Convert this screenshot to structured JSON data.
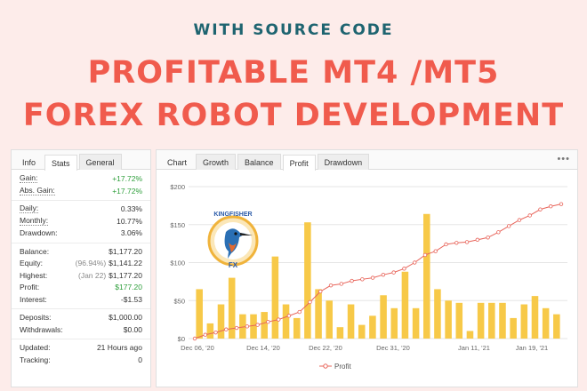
{
  "header": {
    "subtitle": "WITH SOURCE CODE",
    "line1": "PROFITABLE MT4 /MT5",
    "line2": "FOREX ROBOT DEVELOPMENT"
  },
  "stats_panel": {
    "tabs": [
      "Info",
      "Stats",
      "General"
    ],
    "rows": {
      "gain": {
        "label": "Gain:",
        "value": "+17.72%"
      },
      "abs_gain": {
        "label": "Abs. Gain:",
        "value": "+17.72%"
      },
      "daily": {
        "label": "Daily:",
        "value": "0.33%"
      },
      "monthly": {
        "label": "Monthly:",
        "value": "10.77%"
      },
      "drawdown": {
        "label": "Drawdown:",
        "value": "3.06%"
      },
      "balance": {
        "label": "Balance:",
        "value": "$1,177.20"
      },
      "equity": {
        "label": "Equity:",
        "pre": "(96.94%)",
        "value": "$1,141.22"
      },
      "highest": {
        "label": "Highest:",
        "pre": "(Jan 22)",
        "value": "$1,177.20"
      },
      "profit": {
        "label": "Profit:",
        "value": "$177.20"
      },
      "interest": {
        "label": "Interest:",
        "value": "-$1.53"
      },
      "deposits": {
        "label": "Deposits:",
        "value": "$1,000.00"
      },
      "withdrawals": {
        "label": "Withdrawals:",
        "value": "$0.00"
      },
      "updated": {
        "label": "Updated:",
        "value": "21 Hours ago"
      },
      "tracking": {
        "label": "Tracking:",
        "value": "0"
      }
    }
  },
  "chart_panel": {
    "tabs": [
      "Chart",
      "Growth",
      "Balance",
      "Profit",
      "Drawdown"
    ],
    "active_tab": "Profit",
    "menu_label": "•••"
  },
  "logo": {
    "text_top": "KINGFISHER",
    "text_bottom": "FX"
  },
  "colors": {
    "bar": "#f7c948",
    "line": "#e8645a",
    "accent_red": "#f05b4d",
    "teal": "#1e6470"
  },
  "chart_data": {
    "type": "bar",
    "title": "",
    "y_ticks": [
      "$0",
      "$50",
      "$100",
      "$150",
      "$200"
    ],
    "ylim": [
      0,
      200
    ],
    "x_ticks": [
      "Dec 06, '20",
      "Dec 14, '20",
      "Dec 22, '20",
      "Dec 31, '20",
      "Jan 11, '21",
      "Jan 19, '21"
    ],
    "legend": "Profit",
    "bars": [
      65,
      20,
      45,
      80,
      32,
      32,
      35,
      108,
      45,
      27,
      153,
      65,
      50,
      15,
      45,
      18,
      30,
      57,
      40,
      88,
      40,
      164,
      65,
      50,
      47,
      10,
      47,
      47,
      47,
      27,
      45,
      56,
      40,
      32
    ],
    "cumulative": [
      0,
      5,
      8,
      12,
      14,
      16,
      18,
      22,
      25,
      30,
      35,
      48,
      62,
      70,
      72,
      76,
      78,
      80,
      84,
      87,
      92,
      100,
      110,
      115,
      124,
      126,
      127,
      130,
      133,
      140,
      148,
      156,
      162,
      170,
      174,
      177
    ]
  }
}
